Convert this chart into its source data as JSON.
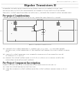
{
  "header_right": "Bipolar transistors II, Page 1",
  "title": "Bipolar Transistors II",
  "body_lines": [
    "Transistor circuits can be used to allow stable sources of constant voltage. This",
    "following exercise tests the development of a simple voltage-control voltage supply",
    "transistor. Output smoothed with one external C, calculate the characteristics running load."
  ],
  "section1_title": "Pre-project Considerations",
  "section1_intro": "Analyse the emitter-follower circuit below, called the 'pass transistor' circuit:",
  "circuit_caption": "Figure 1: Emitter-Follower Circuit",
  "circuit_labels": {
    "vcc": "VCC/VDD",
    "vin": "VIN (+)",
    "vout": "VOUT",
    "r1": "R1",
    "r2": "R2",
    "rz": "Rz",
    "rl": "RL",
    "bz": "B. Bz"
  },
  "q1_lines": [
    "(a)  Calculate the output impedance. Assume VIN=15V, VBE = 0.7 and appropriate",
    "       signal levels, output impedance at the emitter that supplies the non-constant desired",
    "       load.",
    "(b)  Calculate output impedance by finding its change in voltage when the circuit",
    "       is tested by a 1A source.",
    "(c)  Review the output voltage from 12 volts to 10 after a 25% change. What is the",
    "       percentage drop in the input voltage?"
  ],
  "section2_title": "Pre-Project Component Investigation",
  "section2_intro": "Replace the BJT circuit by a circuit based FET with Power load (Fig. 2):",
  "q2_lines": [
    "(a)  Find the output impedance for this case.",
    "(b)  Find the change in output voltage when the output voltage changes from 12 to 10",
    "       Volt."
  ],
  "bg_color": "#ffffff",
  "text_color": "#222222",
  "light_text": "#555555",
  "circuit_border": "#888888",
  "circuit_line": "#333333",
  "circuit_bg": "#f9f9f9"
}
